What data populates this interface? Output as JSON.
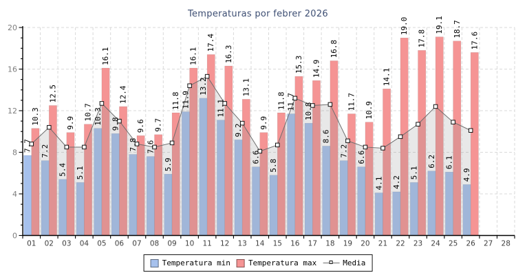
{
  "title": "Temperaturas por febrer 2026",
  "legend": {
    "min_label": "Temperatura min",
    "max_label": "Temperatura max",
    "media_label": "Media"
  },
  "colors": {
    "min_bar": "#a6c1ed",
    "max_bar": "#f59494",
    "bar_edge": "rgba(0,0,0,0.15)",
    "media_line": "#6e6e6e",
    "media_marker_fill": "#ffffff",
    "media_marker_stroke": "#111111",
    "media_area": "rgba(140,140,140,0.20)",
    "grid": "#d9d9d9",
    "axis": "#000000",
    "title_text": "#3d4e73",
    "y_tick_label": "#7d7d7d",
    "x_tick_label": "#3f3f3f",
    "bar_label": "#000000",
    "legend_border": "#161616"
  },
  "chart_data": {
    "type": "bar",
    "title": "Temperaturas por febrer 2026",
    "x_labels": [
      "01",
      "02",
      "03",
      "04",
      "05",
      "06",
      "07",
      "08",
      "09",
      "10",
      "11",
      "12",
      "13",
      "14",
      "15",
      "16",
      "17",
      "18",
      "19",
      "20",
      "21",
      "22",
      "23",
      "24",
      "25",
      "26",
      "27",
      "28"
    ],
    "days_with_data": 26,
    "series": [
      {
        "name": "Temperatura min",
        "type": "bar",
        "values": [
          7.7,
          7.2,
          5.4,
          5.1,
          10.3,
          9.8,
          7.8,
          7.6,
          5.9,
          11.9,
          13.2,
          11.1,
          9.2,
          6.6,
          5.8,
          11.7,
          10.8,
          8.6,
          7.2,
          6.6,
          4.1,
          4.2,
          5.1,
          6.2,
          6.1,
          4.9
        ]
      },
      {
        "name": "Temperatura max",
        "type": "bar",
        "values": [
          10.3,
          12.5,
          9.9,
          10.7,
          16.1,
          12.4,
          9.6,
          9.7,
          11.8,
          16.1,
          17.4,
          16.3,
          13.1,
          9.9,
          11.8,
          15.3,
          14.9,
          16.8,
          11.7,
          10.9,
          14.1,
          19.0,
          17.8,
          19.1,
          18.7,
          17.6
        ]
      },
      {
        "name": "Media",
        "type": "line",
        "values": [
          8.8,
          10.4,
          8.5,
          8.5,
          12.7,
          11.0,
          8.8,
          8.5,
          8.9,
          14.4,
          15.3,
          12.7,
          10.8,
          8.1,
          8.7,
          13.2,
          12.5,
          12.6,
          9.1,
          8.5,
          8.4,
          9.5,
          10.7,
          12.4,
          10.9,
          10.1
        ]
      }
    ],
    "ylim": [
      0,
      20
    ],
    "yticks": [
      0,
      4,
      8,
      12,
      16,
      20
    ],
    "y_minor_step": 1,
    "grid": "dashed",
    "bar_value_labels": true,
    "legend_position": "bottom"
  }
}
